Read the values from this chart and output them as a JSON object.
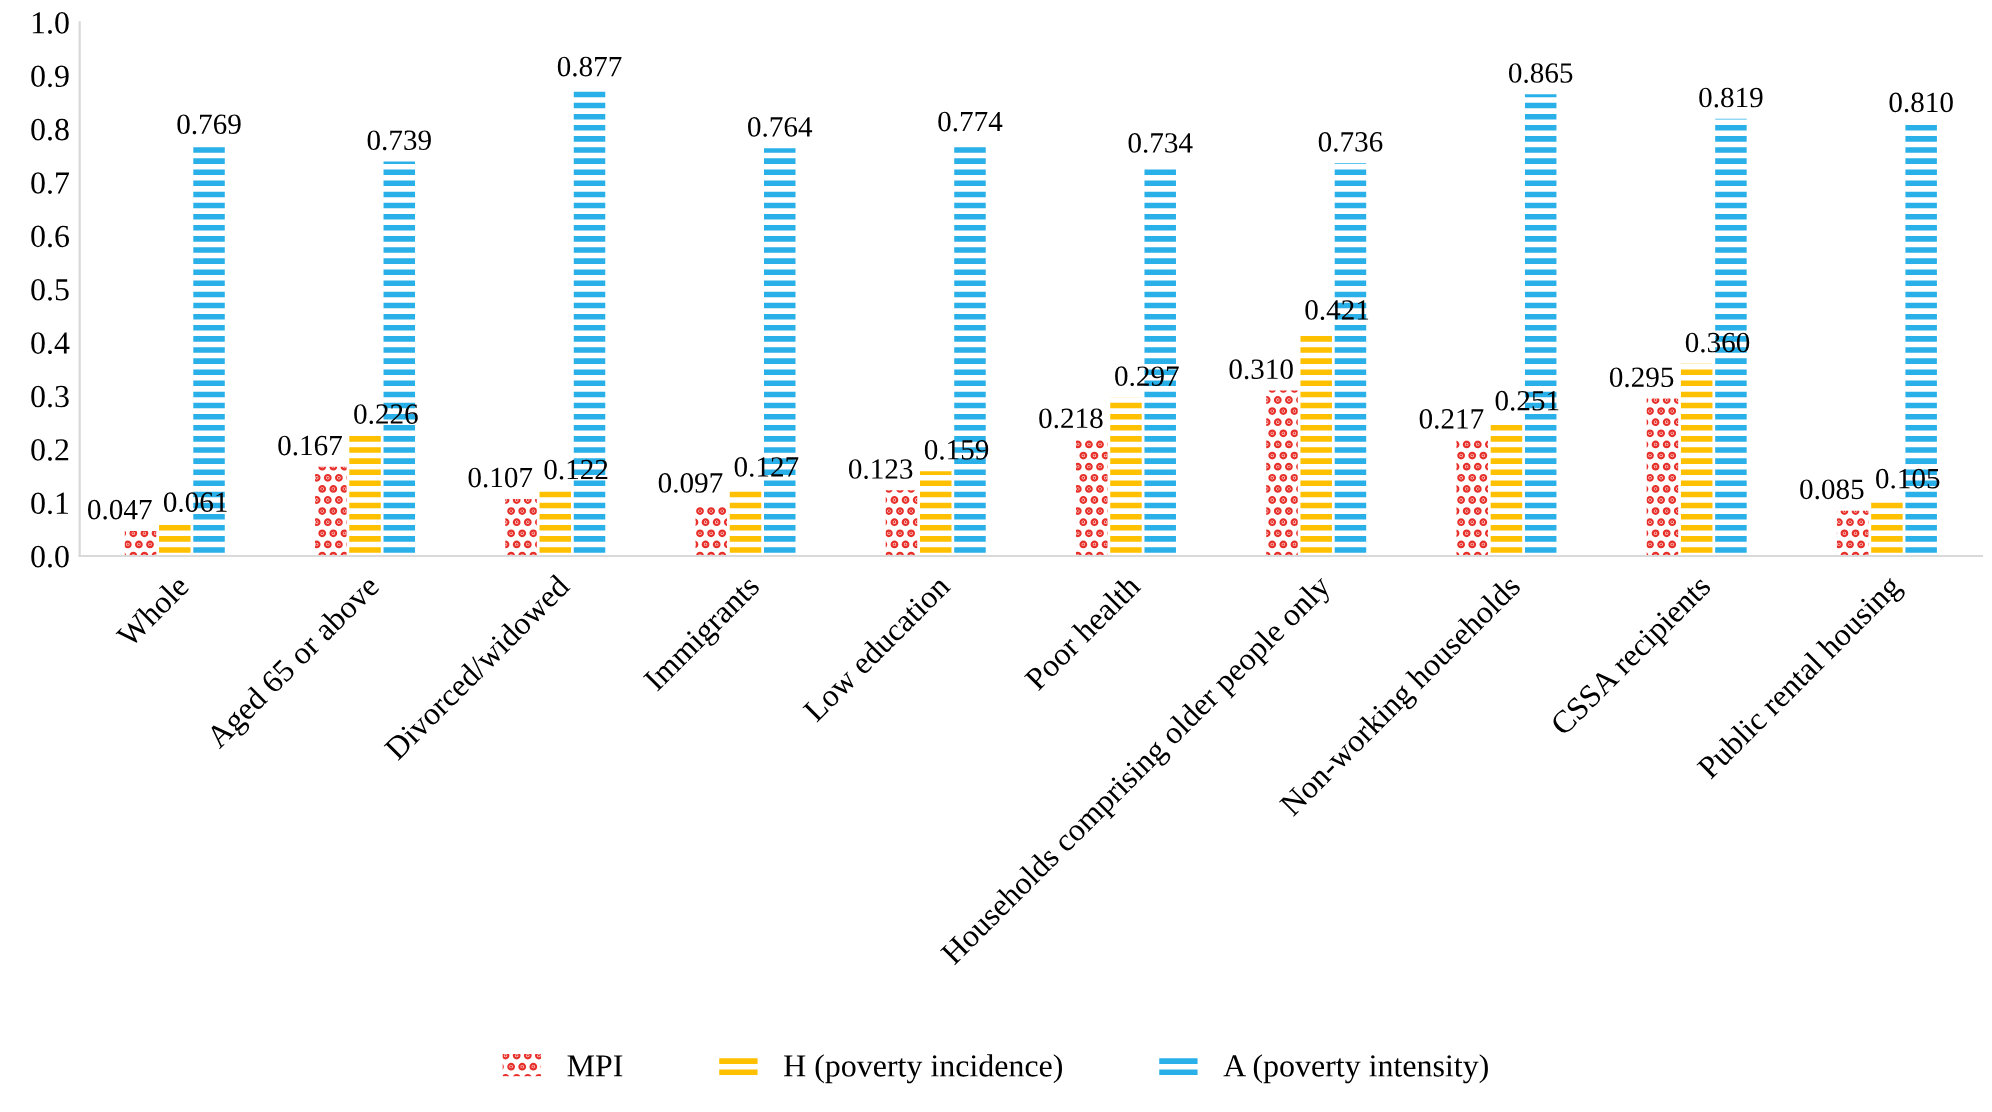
{
  "chart_data": {
    "type": "bar",
    "categories": [
      "Whole",
      "Aged 65 or above",
      "Divorced/widowed",
      "Immigrants",
      "Low education",
      "Poor health",
      "Households comprising older people only",
      "Non-working households",
      "CSSA recipients",
      "Public rental housing"
    ],
    "series": [
      {
        "name": "MPI",
        "color": "#e8302a",
        "values": [
          0.047,
          0.167,
          0.107,
          0.097,
          0.123,
          0.218,
          0.31,
          0.217,
          0.295,
          0.085
        ],
        "value_labels": [
          "0.047",
          "0.167",
          "0.107",
          "0.097",
          "0.123",
          "0.218",
          "0.310",
          "0.217",
          "0.295",
          "0.085"
        ]
      },
      {
        "name": "H (poverty incidence)",
        "color": "#ffc000",
        "values": [
          0.061,
          0.226,
          0.122,
          0.127,
          0.159,
          0.297,
          0.421,
          0.251,
          0.36,
          0.105
        ],
        "value_labels": [
          "0.061",
          "0.226",
          "0.122",
          "0.127",
          "0.159",
          "0.297",
          "0.421",
          "0.251",
          "0.360",
          "0.105"
        ]
      },
      {
        "name": "A (poverty intensity)",
        "color": "#2ab0e8",
        "values": [
          0.769,
          0.739,
          0.877,
          0.764,
          0.774,
          0.734,
          0.736,
          0.865,
          0.819,
          0.81
        ],
        "value_labels": [
          "0.769",
          "0.739",
          "0.877",
          "0.764",
          "0.774",
          "0.734",
          "0.736",
          "0.865",
          "0.819",
          "0.810"
        ]
      }
    ],
    "ylim": [
      0,
      1.0
    ],
    "yticks": [
      {
        "value": 0,
        "label": "0.0"
      },
      {
        "value": 0.1,
        "label": "0.1"
      },
      {
        "value": 0.2,
        "label": "0.2"
      },
      {
        "value": 0.3,
        "label": "0.3"
      },
      {
        "value": 0.4,
        "label": "0.4"
      },
      {
        "value": 0.5,
        "label": "0.5"
      },
      {
        "value": 0.6,
        "label": "0.6"
      },
      {
        "value": 0.7,
        "label": "0.7"
      },
      {
        "value": 0.8,
        "label": "0.8"
      },
      {
        "value": 0.9,
        "label": "0.9"
      },
      {
        "value": 1.0,
        "label": "1.0"
      }
    ],
    "grid": false,
    "legend": "bottom"
  }
}
